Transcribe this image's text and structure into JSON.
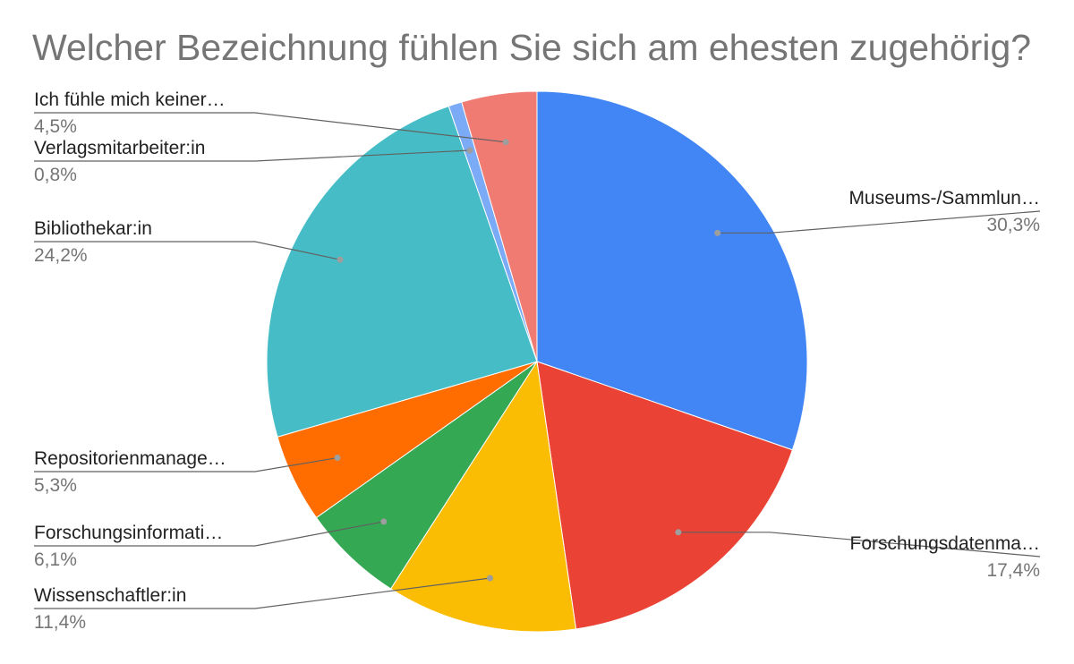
{
  "chart_data": {
    "type": "pie",
    "title": "Welcher Bezeichnung fühlen Sie sich am ehesten zugehörig?",
    "legend": "labels-outside",
    "slices": [
      {
        "label": "Museums-/Sammlun…",
        "value": 30.3,
        "percent_label": "30,3%",
        "color": "#4285F4"
      },
      {
        "label": "Forschungsdatenma…",
        "value": 17.4,
        "percent_label": "17,4%",
        "color": "#EA4335"
      },
      {
        "label": "Wissenschaftler:in",
        "value": 11.4,
        "percent_label": "11,4%",
        "color": "#FBBC04"
      },
      {
        "label": "Forschungsinformati…",
        "value": 6.1,
        "percent_label": "6,1%",
        "color": "#34A853"
      },
      {
        "label": "Repositorienmanage…",
        "value": 5.3,
        "percent_label": "5,3%",
        "color": "#FF6D01"
      },
      {
        "label": "Bibliothekar:in",
        "value": 24.2,
        "percent_label": "24,2%",
        "color": "#46BDC6"
      },
      {
        "label": "Verlagsmitarbeiter:in",
        "value": 0.8,
        "percent_label": "0,8%",
        "color": "#7BAAF7"
      },
      {
        "label": "Ich fühle mich keiner…",
        "value": 4.5,
        "percent_label": "4,5%",
        "color": "#F07B72"
      }
    ]
  }
}
